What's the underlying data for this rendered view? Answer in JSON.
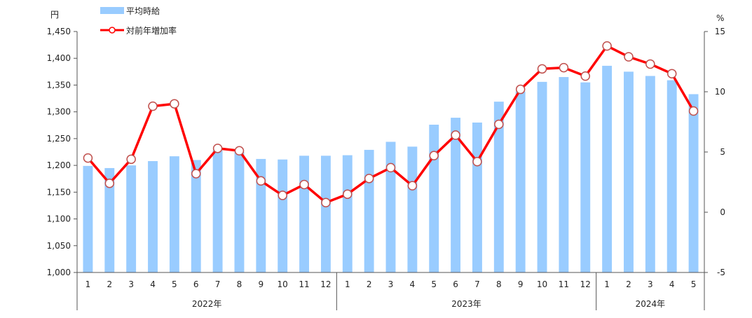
{
  "chart_data": {
    "type": "bar",
    "left_axis_unit": "円",
    "right_axis_unit": "%",
    "y_left": {
      "min": 1000,
      "max": 1450,
      "ticks": [
        "1,000",
        "1,050",
        "1,100",
        "1,150",
        "1,200",
        "1,250",
        "1,300",
        "1,350",
        "1,400",
        "1,450"
      ]
    },
    "y_right": {
      "min": -5,
      "max": 15,
      "ticks": [
        "-5",
        "0",
        "5",
        "10",
        "15"
      ]
    },
    "categories": [
      "1",
      "2",
      "3",
      "4",
      "5",
      "6",
      "7",
      "8",
      "9",
      "10",
      "11",
      "12",
      "1",
      "2",
      "3",
      "4",
      "5",
      "6",
      "7",
      "8",
      "9",
      "10",
      "11",
      "12",
      "1",
      "2",
      "3",
      "4",
      "5"
    ],
    "years": [
      {
        "label": "2022年",
        "count": 12
      },
      {
        "label": "2023年",
        "count": 12
      },
      {
        "label": "2024年",
        "count": 5
      }
    ],
    "series": [
      {
        "name": "平均時給",
        "type": "bar",
        "axis": "left",
        "color": "#99CCFF",
        "values": [
          1199,
          1195,
          1200,
          1208,
          1217,
          1210,
          1228,
          1225,
          1212,
          1211,
          1218,
          1218,
          1219,
          1229,
          1244,
          1235,
          1276,
          1289,
          1280,
          1319,
          1338,
          1356,
          1365,
          1355,
          1386,
          1375,
          1367,
          1359,
          1333
        ]
      },
      {
        "name": "対前年増加率",
        "type": "line",
        "axis": "right",
        "color": "#FF0000",
        "values": [
          4.5,
          2.4,
          4.4,
          8.8,
          9.0,
          3.2,
          5.3,
          5.1,
          2.6,
          1.4,
          2.3,
          0.8,
          1.5,
          2.8,
          3.7,
          2.2,
          4.7,
          6.4,
          4.2,
          7.3,
          10.2,
          11.9,
          12.0,
          11.3,
          13.8,
          12.9,
          12.3,
          11.5,
          8.4
        ]
      }
    ]
  }
}
